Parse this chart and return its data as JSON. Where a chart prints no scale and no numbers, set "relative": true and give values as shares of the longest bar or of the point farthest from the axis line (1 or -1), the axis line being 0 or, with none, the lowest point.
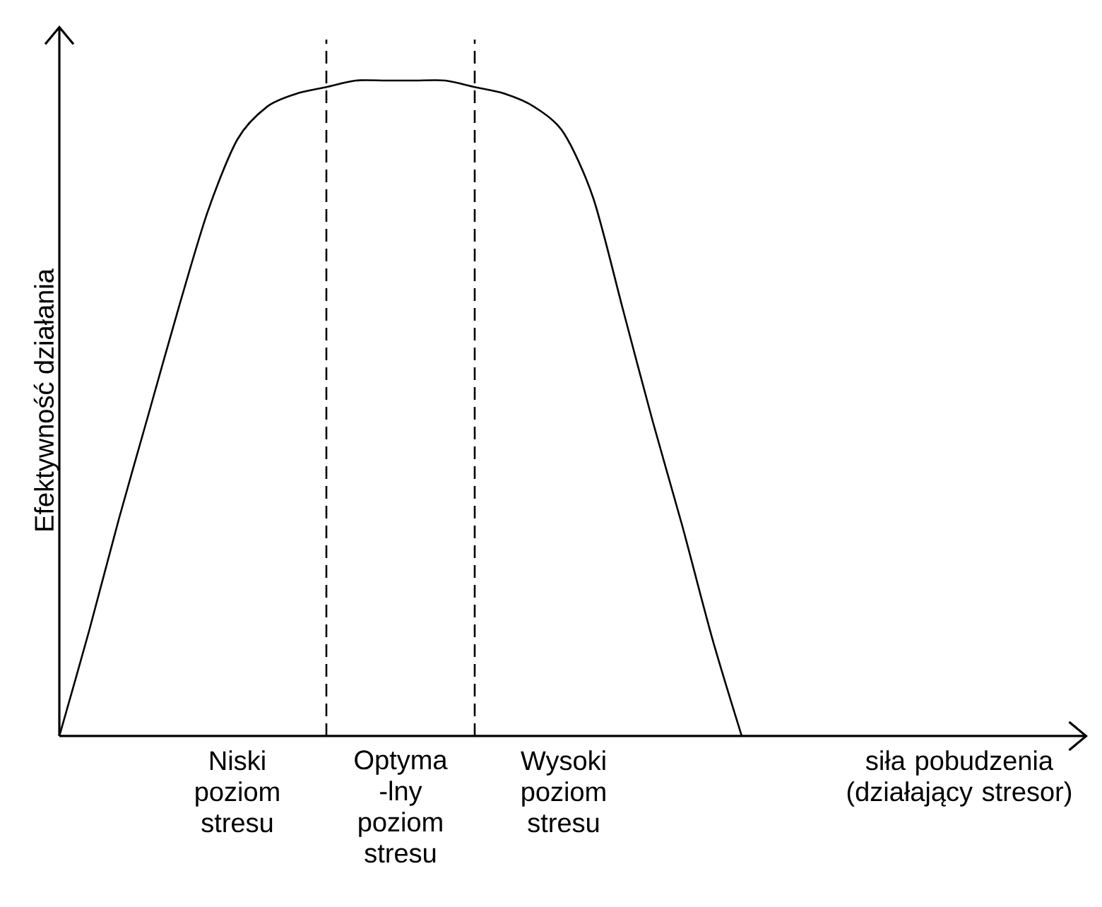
{
  "chart_data": {
    "type": "line",
    "relative": true,
    "xlabel": "siła pobudzenia (działający stresor)",
    "ylabel": "Efektywność działania",
    "categories": [
      null,
      null,
      null,
      null,
      null,
      null,
      null,
      null,
      null,
      null,
      null,
      null,
      null,
      null,
      null,
      null,
      null,
      null,
      null,
      null,
      null,
      null,
      null,
      null
    ],
    "series": [
      {
        "color": "#000000",
        "values": [
          0,
          0.16,
          0.33,
          0.49,
          0.65,
          0.8,
          0.91,
          0.96,
          0.98,
          0.99,
          1.0,
          1.0,
          1.0,
          1.0,
          0.99,
          0.98,
          0.96,
          0.92,
          0.82,
          0.65,
          0.48,
          0.32,
          0.15,
          0
        ]
      }
    ],
    "annotations": [
      "Niski poziom stresu",
      "Optyma -lny poziom stresu",
      "Wysoki poziom stresu"
    ]
  }
}
